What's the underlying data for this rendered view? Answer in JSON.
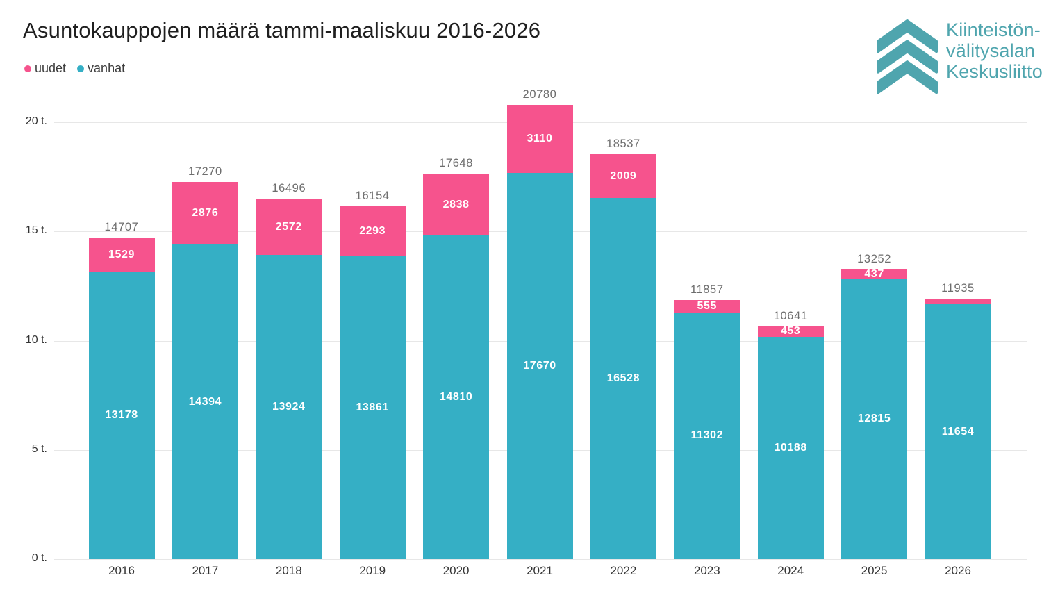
{
  "header": {
    "title": "Asuntokauppojen määrä tammi-maaliskuu 2016-2026"
  },
  "logo": {
    "name": "Kiinteistönvälitysalan Keskusliitto",
    "lines": [
      "Kiinteistön-",
      "välitysalan",
      "Keskusliitto"
    ],
    "color": "#4FA5AE",
    "icon": "triple-chevron-up-icon"
  },
  "chart_data": {
    "type": "bar",
    "stacked": true,
    "title": "Asuntokauppojen määrä tammi-maaliskuu 2016-2026",
    "categories": [
      "2016",
      "2017",
      "2018",
      "2019",
      "2020",
      "2021",
      "2022",
      "2023",
      "2024",
      "2025",
      "2026"
    ],
    "series": [
      {
        "name": "uudet",
        "color": "#F6538D",
        "values": [
          1529,
          2876,
          2572,
          2293,
          2838,
          3110,
          2009,
          555,
          453,
          437,
          281
        ],
        "labels": [
          "1529",
          "2876",
          "2572",
          "2293",
          "2838",
          "3110",
          "2009",
          "555",
          "453",
          "437",
          ""
        ]
      },
      {
        "name": "vanhat",
        "color": "#35AFC5",
        "values": [
          13178,
          14394,
          13924,
          13861,
          14810,
          17670,
          16528,
          11302,
          10188,
          12815,
          11654
        ],
        "labels": [
          "13178",
          "14394",
          "13924",
          "13861",
          "14810",
          "17670",
          "16528",
          "11302",
          "10188",
          "12815",
          "11654"
        ]
      }
    ],
    "totals": [
      14707,
      17270,
      16496,
      16154,
      17648,
      20780,
      18537,
      11857,
      10641,
      13252,
      11935
    ],
    "total_labels": [
      "14707",
      "17270",
      "16496",
      "16154",
      "17648",
      "20780",
      "18537",
      "11857",
      "10641",
      "13252",
      "11935"
    ],
    "y_ticks": [
      {
        "value": 0,
        "label": "0 t."
      },
      {
        "value": 5000,
        "label": "5 t."
      },
      {
        "value": 10000,
        "label": "10 t."
      },
      {
        "value": 15000,
        "label": "15 t."
      },
      {
        "value": 20000,
        "label": "20 t."
      }
    ],
    "ylim": [
      0,
      21500
    ],
    "grid": true,
    "legend_position": "top-left",
    "colors": {
      "grid_line": "#E7E7E7",
      "total_label": "#6D6D6D",
      "bar_label": "#FFFFFF",
      "axis_label": "#333333"
    }
  }
}
